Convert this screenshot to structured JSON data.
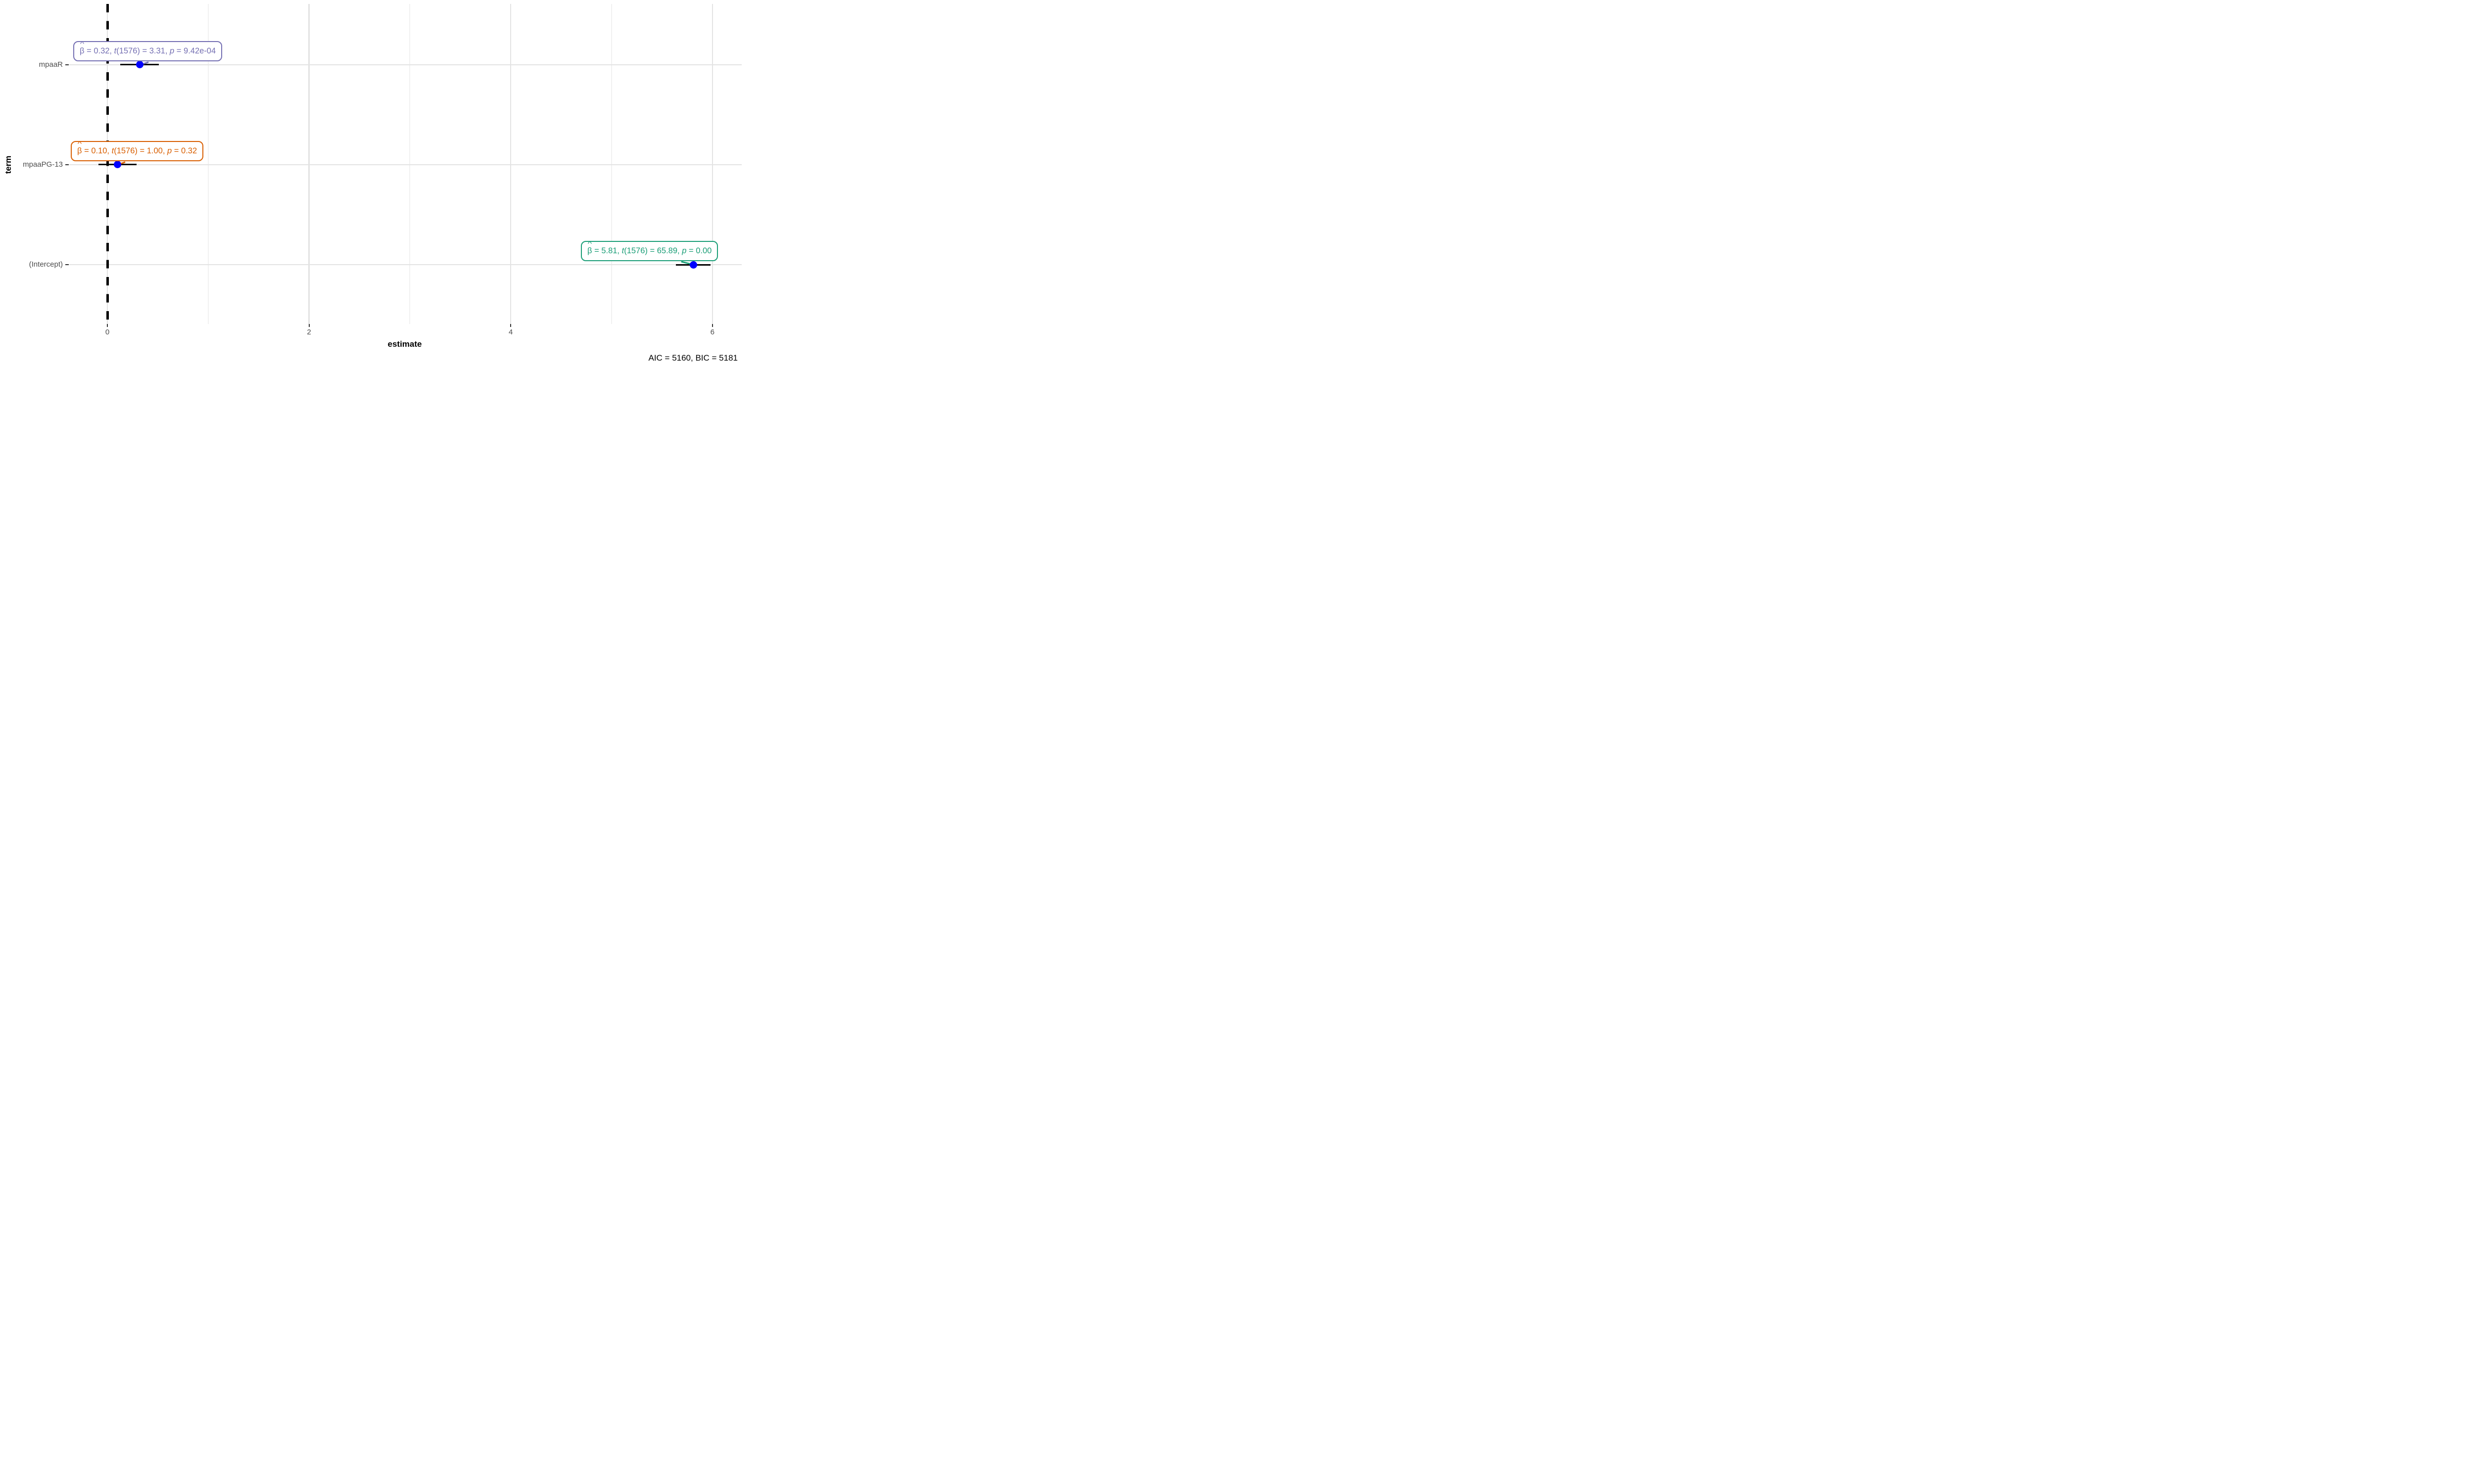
{
  "chart_data": {
    "type": "scatter",
    "subtype": "coefficient-dot-whisker-plot",
    "orientation": "horizontal",
    "xlabel": "estimate",
    "ylabel": "term",
    "caption": "AIC = 5160, BIC = 5181",
    "xlim": [
      -0.38,
      6.29
    ],
    "x_ticks": [
      0,
      2,
      4,
      6
    ],
    "x_minor_ticks": [
      1,
      3,
      5
    ],
    "grid": true,
    "legend": "none",
    "zero_line": {
      "x": 0,
      "style": "dashed",
      "color": "#000000"
    },
    "point_color": "#0000FF",
    "error_bar_color": "#000000",
    "categories": [
      "mpaaR",
      "mpaaPG-13",
      "(Intercept)"
    ],
    "terms": [
      {
        "term": "mpaaR",
        "estimate": 0.32,
        "ci_lower": 0.13,
        "ci_upper": 0.51,
        "color": "#7570B3",
        "stat": {
          "hat": "^",
          "beta": "β",
          "estimate_part": "= 0.32,",
          "t": "t",
          "df": "(1576)",
          "t_value_part": "= 3.31,",
          "p": "p",
          "p_value_part": "= 9.42e-04"
        }
      },
      {
        "term": "mpaaPG-13",
        "estimate": 0.1,
        "ci_lower": -0.09,
        "ci_upper": 0.29,
        "color": "#D95F02",
        "stat": {
          "hat": "^",
          "beta": "β",
          "estimate_part": "= 0.10,",
          "t": "t",
          "df": "(1576)",
          "t_value_part": "= 1.00,",
          "p": "p",
          "p_value_part": "= 0.32"
        }
      },
      {
        "term": "(Intercept)",
        "estimate": 5.81,
        "ci_lower": 5.64,
        "ci_upper": 5.98,
        "color": "#1B9E77",
        "stat": {
          "hat": "^",
          "beta": "β",
          "estimate_part": "= 5.81,",
          "t": "t",
          "df": "(1576)",
          "t_value_part": "= 65.89,",
          "p": "p",
          "p_value_part": "= 0.00"
        }
      }
    ],
    "colors": {
      "grid_major": "#E3E3E3",
      "grid_minor": "#F1F1F1",
      "axis_text": "#4D4D4D",
      "tick_mark": "#333333",
      "title_text": "#000000"
    }
  }
}
